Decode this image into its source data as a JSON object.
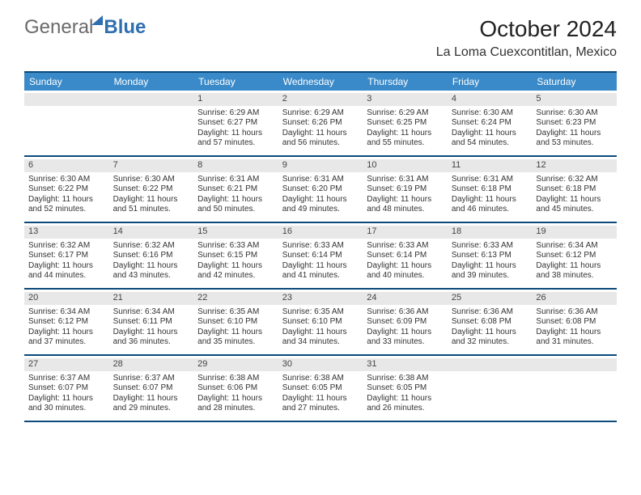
{
  "logo": {
    "part1": "General",
    "part2": "Blue"
  },
  "title": "October 2024",
  "location": "La Loma Cuexcontitlan, Mexico",
  "theme": {
    "accent": "#3a8ac9",
    "border": "#0b4a7b",
    "daybg": "#e8e8e8",
    "text": "#333333"
  },
  "weekdays": [
    "Sunday",
    "Monday",
    "Tuesday",
    "Wednesday",
    "Thursday",
    "Friday",
    "Saturday"
  ],
  "weeks": [
    [
      null,
      null,
      {
        "n": "1",
        "sr": "Sunrise: 6:29 AM",
        "ss": "Sunset: 6:27 PM",
        "dl": "Daylight: 11 hours and 57 minutes."
      },
      {
        "n": "2",
        "sr": "Sunrise: 6:29 AM",
        "ss": "Sunset: 6:26 PM",
        "dl": "Daylight: 11 hours and 56 minutes."
      },
      {
        "n": "3",
        "sr": "Sunrise: 6:29 AM",
        "ss": "Sunset: 6:25 PM",
        "dl": "Daylight: 11 hours and 55 minutes."
      },
      {
        "n": "4",
        "sr": "Sunrise: 6:30 AM",
        "ss": "Sunset: 6:24 PM",
        "dl": "Daylight: 11 hours and 54 minutes."
      },
      {
        "n": "5",
        "sr": "Sunrise: 6:30 AM",
        "ss": "Sunset: 6:23 PM",
        "dl": "Daylight: 11 hours and 53 minutes."
      }
    ],
    [
      {
        "n": "6",
        "sr": "Sunrise: 6:30 AM",
        "ss": "Sunset: 6:22 PM",
        "dl": "Daylight: 11 hours and 52 minutes."
      },
      {
        "n": "7",
        "sr": "Sunrise: 6:30 AM",
        "ss": "Sunset: 6:22 PM",
        "dl": "Daylight: 11 hours and 51 minutes."
      },
      {
        "n": "8",
        "sr": "Sunrise: 6:31 AM",
        "ss": "Sunset: 6:21 PM",
        "dl": "Daylight: 11 hours and 50 minutes."
      },
      {
        "n": "9",
        "sr": "Sunrise: 6:31 AM",
        "ss": "Sunset: 6:20 PM",
        "dl": "Daylight: 11 hours and 49 minutes."
      },
      {
        "n": "10",
        "sr": "Sunrise: 6:31 AM",
        "ss": "Sunset: 6:19 PM",
        "dl": "Daylight: 11 hours and 48 minutes."
      },
      {
        "n": "11",
        "sr": "Sunrise: 6:31 AM",
        "ss": "Sunset: 6:18 PM",
        "dl": "Daylight: 11 hours and 46 minutes."
      },
      {
        "n": "12",
        "sr": "Sunrise: 6:32 AM",
        "ss": "Sunset: 6:18 PM",
        "dl": "Daylight: 11 hours and 45 minutes."
      }
    ],
    [
      {
        "n": "13",
        "sr": "Sunrise: 6:32 AM",
        "ss": "Sunset: 6:17 PM",
        "dl": "Daylight: 11 hours and 44 minutes."
      },
      {
        "n": "14",
        "sr": "Sunrise: 6:32 AM",
        "ss": "Sunset: 6:16 PM",
        "dl": "Daylight: 11 hours and 43 minutes."
      },
      {
        "n": "15",
        "sr": "Sunrise: 6:33 AM",
        "ss": "Sunset: 6:15 PM",
        "dl": "Daylight: 11 hours and 42 minutes."
      },
      {
        "n": "16",
        "sr": "Sunrise: 6:33 AM",
        "ss": "Sunset: 6:14 PM",
        "dl": "Daylight: 11 hours and 41 minutes."
      },
      {
        "n": "17",
        "sr": "Sunrise: 6:33 AM",
        "ss": "Sunset: 6:14 PM",
        "dl": "Daylight: 11 hours and 40 minutes."
      },
      {
        "n": "18",
        "sr": "Sunrise: 6:33 AM",
        "ss": "Sunset: 6:13 PM",
        "dl": "Daylight: 11 hours and 39 minutes."
      },
      {
        "n": "19",
        "sr": "Sunrise: 6:34 AM",
        "ss": "Sunset: 6:12 PM",
        "dl": "Daylight: 11 hours and 38 minutes."
      }
    ],
    [
      {
        "n": "20",
        "sr": "Sunrise: 6:34 AM",
        "ss": "Sunset: 6:12 PM",
        "dl": "Daylight: 11 hours and 37 minutes."
      },
      {
        "n": "21",
        "sr": "Sunrise: 6:34 AM",
        "ss": "Sunset: 6:11 PM",
        "dl": "Daylight: 11 hours and 36 minutes."
      },
      {
        "n": "22",
        "sr": "Sunrise: 6:35 AM",
        "ss": "Sunset: 6:10 PM",
        "dl": "Daylight: 11 hours and 35 minutes."
      },
      {
        "n": "23",
        "sr": "Sunrise: 6:35 AM",
        "ss": "Sunset: 6:10 PM",
        "dl": "Daylight: 11 hours and 34 minutes."
      },
      {
        "n": "24",
        "sr": "Sunrise: 6:36 AM",
        "ss": "Sunset: 6:09 PM",
        "dl": "Daylight: 11 hours and 33 minutes."
      },
      {
        "n": "25",
        "sr": "Sunrise: 6:36 AM",
        "ss": "Sunset: 6:08 PM",
        "dl": "Daylight: 11 hours and 32 minutes."
      },
      {
        "n": "26",
        "sr": "Sunrise: 6:36 AM",
        "ss": "Sunset: 6:08 PM",
        "dl": "Daylight: 11 hours and 31 minutes."
      }
    ],
    [
      {
        "n": "27",
        "sr": "Sunrise: 6:37 AM",
        "ss": "Sunset: 6:07 PM",
        "dl": "Daylight: 11 hours and 30 minutes."
      },
      {
        "n": "28",
        "sr": "Sunrise: 6:37 AM",
        "ss": "Sunset: 6:07 PM",
        "dl": "Daylight: 11 hours and 29 minutes."
      },
      {
        "n": "29",
        "sr": "Sunrise: 6:38 AM",
        "ss": "Sunset: 6:06 PM",
        "dl": "Daylight: 11 hours and 28 minutes."
      },
      {
        "n": "30",
        "sr": "Sunrise: 6:38 AM",
        "ss": "Sunset: 6:05 PM",
        "dl": "Daylight: 11 hours and 27 minutes."
      },
      {
        "n": "31",
        "sr": "Sunrise: 6:38 AM",
        "ss": "Sunset: 6:05 PM",
        "dl": "Daylight: 11 hours and 26 minutes."
      },
      null,
      null
    ]
  ]
}
